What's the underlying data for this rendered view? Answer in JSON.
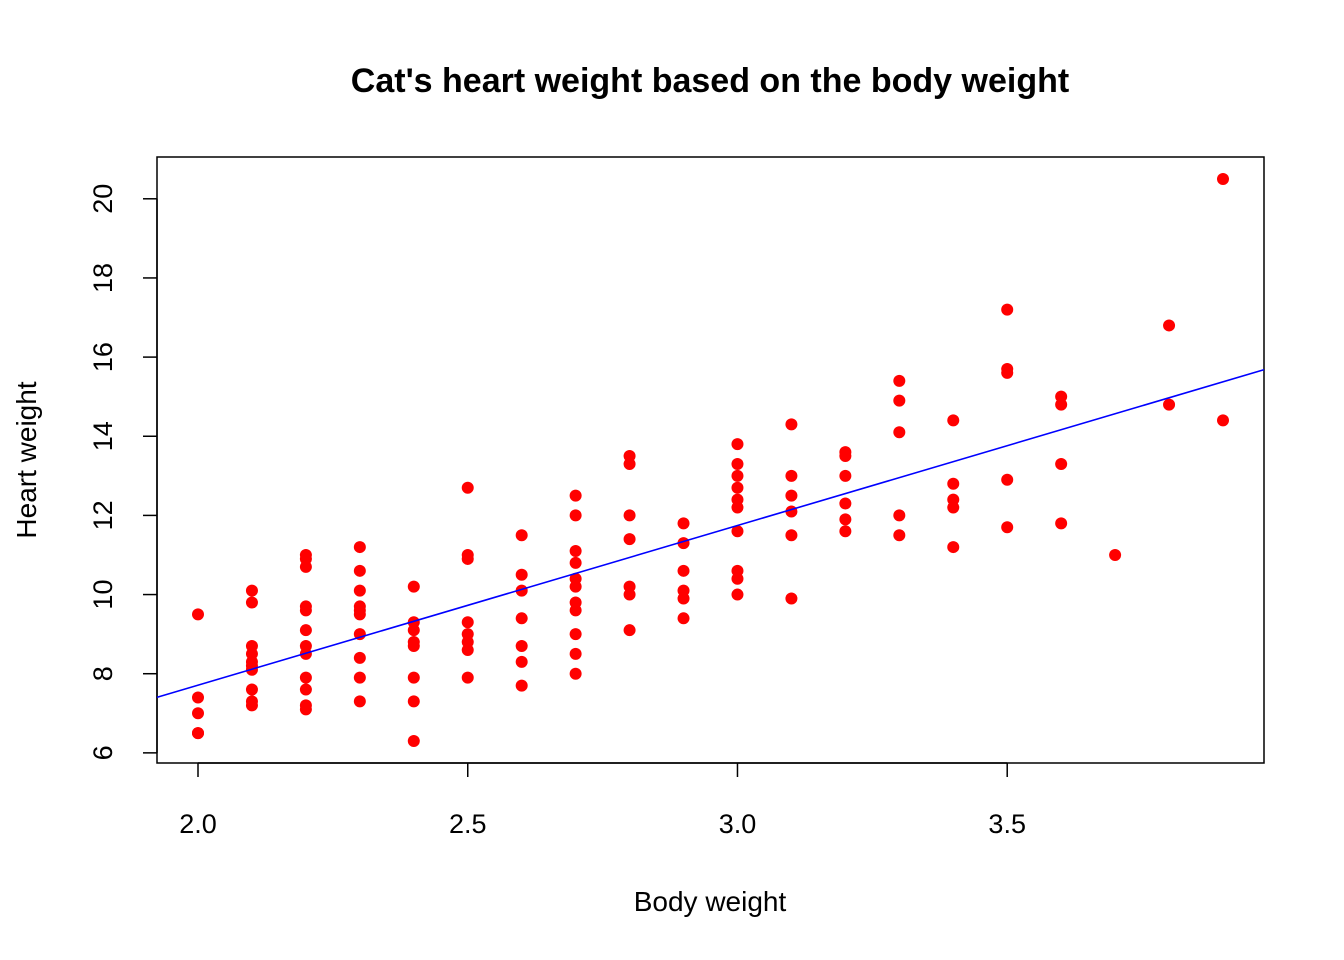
{
  "chart_data": {
    "type": "scatter",
    "title": "Cat's heart weight based on the body weight",
    "xlabel": "Body weight",
    "ylabel": "Heart weight",
    "xlim": [
      1.924,
      3.976
    ],
    "ylim": [
      5.744,
      21.056
    ],
    "x_ticks": [
      "2.0",
      "2.5",
      "3.0",
      "3.5"
    ],
    "x_tick_values": [
      2.0,
      2.5,
      3.0,
      3.5
    ],
    "y_ticks": [
      "6",
      "8",
      "10",
      "12",
      "14",
      "16",
      "18",
      "20"
    ],
    "y_tick_values": [
      6,
      8,
      10,
      12,
      14,
      16,
      18,
      20
    ],
    "grid": false,
    "point_color": "#ff0000",
    "line_color": "#0000ff",
    "regression_line": {
      "intercept": -0.357,
      "slope": 4.034
    },
    "points": [
      [
        2.0,
        9.5
      ],
      [
        2.0,
        7.4
      ],
      [
        2.0,
        7.0
      ],
      [
        2.0,
        6.5
      ],
      [
        2.0,
        6.5
      ],
      [
        2.1,
        10.1
      ],
      [
        2.1,
        9.8
      ],
      [
        2.1,
        8.7
      ],
      [
        2.1,
        8.5
      ],
      [
        2.1,
        8.3
      ],
      [
        2.1,
        8.2
      ],
      [
        2.1,
        8.1
      ],
      [
        2.1,
        7.6
      ],
      [
        2.1,
        7.3
      ],
      [
        2.1,
        7.2
      ],
      [
        2.2,
        11.0
      ],
      [
        2.2,
        10.9
      ],
      [
        2.2,
        10.7
      ],
      [
        2.2,
        9.7
      ],
      [
        2.2,
        9.6
      ],
      [
        2.2,
        9.1
      ],
      [
        2.2,
        8.7
      ],
      [
        2.2,
        8.5
      ],
      [
        2.2,
        7.9
      ],
      [
        2.2,
        7.6
      ],
      [
        2.2,
        7.2
      ],
      [
        2.2,
        7.1
      ],
      [
        2.3,
        11.2
      ],
      [
        2.3,
        10.6
      ],
      [
        2.3,
        10.1
      ],
      [
        2.3,
        9.7
      ],
      [
        2.3,
        9.6
      ],
      [
        2.3,
        9.5
      ],
      [
        2.3,
        9.0
      ],
      [
        2.3,
        8.4
      ],
      [
        2.3,
        7.9
      ],
      [
        2.3,
        7.3
      ],
      [
        2.4,
        10.2
      ],
      [
        2.4,
        9.3
      ],
      [
        2.4,
        9.1
      ],
      [
        2.4,
        8.8
      ],
      [
        2.4,
        8.7
      ],
      [
        2.4,
        7.9
      ],
      [
        2.4,
        7.3
      ],
      [
        2.4,
        6.3
      ],
      [
        2.5,
        12.7
      ],
      [
        2.5,
        11.0
      ],
      [
        2.5,
        10.9
      ],
      [
        2.5,
        9.3
      ],
      [
        2.5,
        9.0
      ],
      [
        2.5,
        8.8
      ],
      [
        2.5,
        8.6
      ],
      [
        2.5,
        7.9
      ],
      [
        2.6,
        11.5
      ],
      [
        2.6,
        10.5
      ],
      [
        2.6,
        10.1
      ],
      [
        2.6,
        9.4
      ],
      [
        2.6,
        8.7
      ],
      [
        2.6,
        8.3
      ],
      [
        2.6,
        7.7
      ],
      [
        2.7,
        12.5
      ],
      [
        2.7,
        12.0
      ],
      [
        2.7,
        11.1
      ],
      [
        2.7,
        10.8
      ],
      [
        2.7,
        10.4
      ],
      [
        2.7,
        10.2
      ],
      [
        2.7,
        9.8
      ],
      [
        2.7,
        9.6
      ],
      [
        2.7,
        9.0
      ],
      [
        2.7,
        8.5
      ],
      [
        2.7,
        8.0
      ],
      [
        2.8,
        13.5
      ],
      [
        2.8,
        13.3
      ],
      [
        2.8,
        12.0
      ],
      [
        2.8,
        11.4
      ],
      [
        2.8,
        10.2
      ],
      [
        2.8,
        10.0
      ],
      [
        2.8,
        9.1
      ],
      [
        2.9,
        11.8
      ],
      [
        2.9,
        11.3
      ],
      [
        2.9,
        10.6
      ],
      [
        2.9,
        10.1
      ],
      [
        2.9,
        9.9
      ],
      [
        2.9,
        9.4
      ],
      [
        3.0,
        13.8
      ],
      [
        3.0,
        13.3
      ],
      [
        3.0,
        13.0
      ],
      [
        3.0,
        12.7
      ],
      [
        3.0,
        12.4
      ],
      [
        3.0,
        12.2
      ],
      [
        3.0,
        11.6
      ],
      [
        3.0,
        10.6
      ],
      [
        3.0,
        10.4
      ],
      [
        3.0,
        10.0
      ],
      [
        3.1,
        14.3
      ],
      [
        3.1,
        13.0
      ],
      [
        3.1,
        12.5
      ],
      [
        3.1,
        12.1
      ],
      [
        3.1,
        11.5
      ],
      [
        3.1,
        9.9
      ],
      [
        3.2,
        13.6
      ],
      [
        3.2,
        13.5
      ],
      [
        3.2,
        13.0
      ],
      [
        3.2,
        12.3
      ],
      [
        3.2,
        11.9
      ],
      [
        3.2,
        11.6
      ],
      [
        3.3,
        15.4
      ],
      [
        3.3,
        14.9
      ],
      [
        3.3,
        14.1
      ],
      [
        3.3,
        12.0
      ],
      [
        3.3,
        11.5
      ],
      [
        3.4,
        14.4
      ],
      [
        3.4,
        12.8
      ],
      [
        3.4,
        12.4
      ],
      [
        3.4,
        12.2
      ],
      [
        3.4,
        11.2
      ],
      [
        3.5,
        17.2
      ],
      [
        3.5,
        15.7
      ],
      [
        3.5,
        15.6
      ],
      [
        3.5,
        12.9
      ],
      [
        3.5,
        11.7
      ],
      [
        3.6,
        15.0
      ],
      [
        3.6,
        14.8
      ],
      [
        3.6,
        13.3
      ],
      [
        3.6,
        11.8
      ],
      [
        3.7,
        11.0
      ],
      [
        3.8,
        16.8
      ],
      [
        3.8,
        14.8
      ],
      [
        3.9,
        20.5
      ],
      [
        3.9,
        14.4
      ]
    ]
  }
}
